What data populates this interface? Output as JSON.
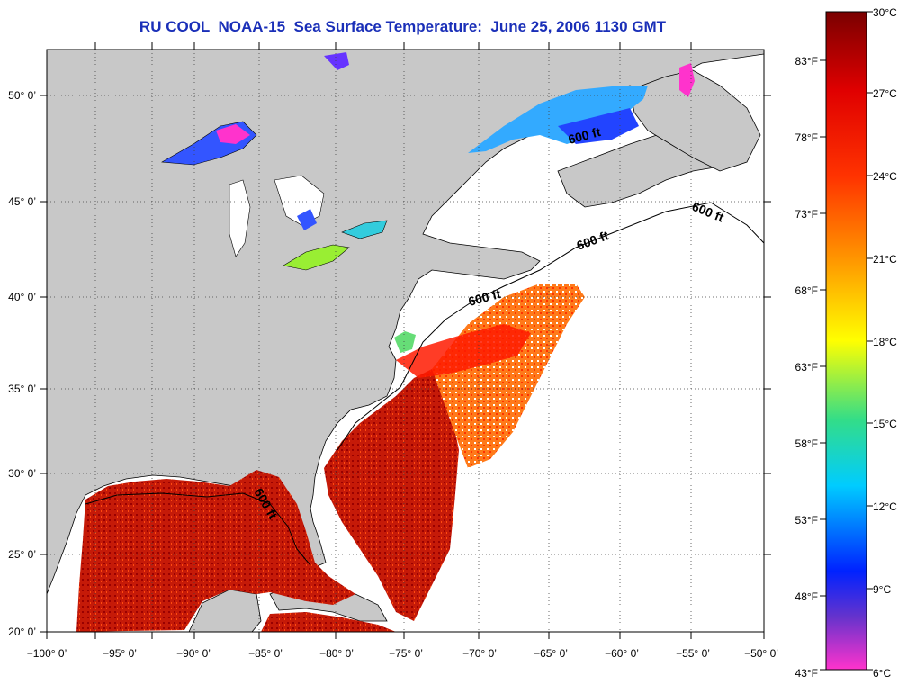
{
  "title": "RU COOL  NOAA-15  Sea Surface Temperature:  June 25, 2006 1130 GMT",
  "axes": {
    "lon_labels": [
      "−100° 0’",
      "−95° 0’",
      "−90° 0’",
      "−85° 0’",
      "−80° 0’",
      "−75° 0’",
      "−70° 0’",
      "−65° 0’",
      "−60° 0’",
      "−55° 0’",
      "−50° 0’"
    ],
    "lat_labels": [
      "20° 0’",
      "25° 0’",
      "30° 0’",
      "35° 0’",
      "40° 0’",
      "45° 0’",
      "50° 0’"
    ]
  },
  "contour_labels": [
    "600 ft",
    "600 ft",
    "600 ft",
    "600 ft",
    "600 ft"
  ],
  "colorbar": {
    "celsius_labels": [
      "30°C",
      "27°C",
      "24°C",
      "21°C",
      "18°C",
      "15°C",
      "12°C",
      "9°C",
      "6°C"
    ],
    "fahrenheit_labels": [
      "83°F",
      "78°F",
      "73°F",
      "68°F",
      "63°F",
      "58°F",
      "53°F",
      "48°F",
      "43°F"
    ],
    "colors": [
      "#8b0000",
      "#ff1a00",
      "#ff8c00",
      "#ffff00",
      "#33dd88",
      "#00ccff",
      "#0033ff",
      "#6633cc",
      "#ff33cc"
    ]
  },
  "colors": {
    "land": "#c8c8c8",
    "ocean_nodata": "#ffffff",
    "title": "#1a2fb8"
  }
}
